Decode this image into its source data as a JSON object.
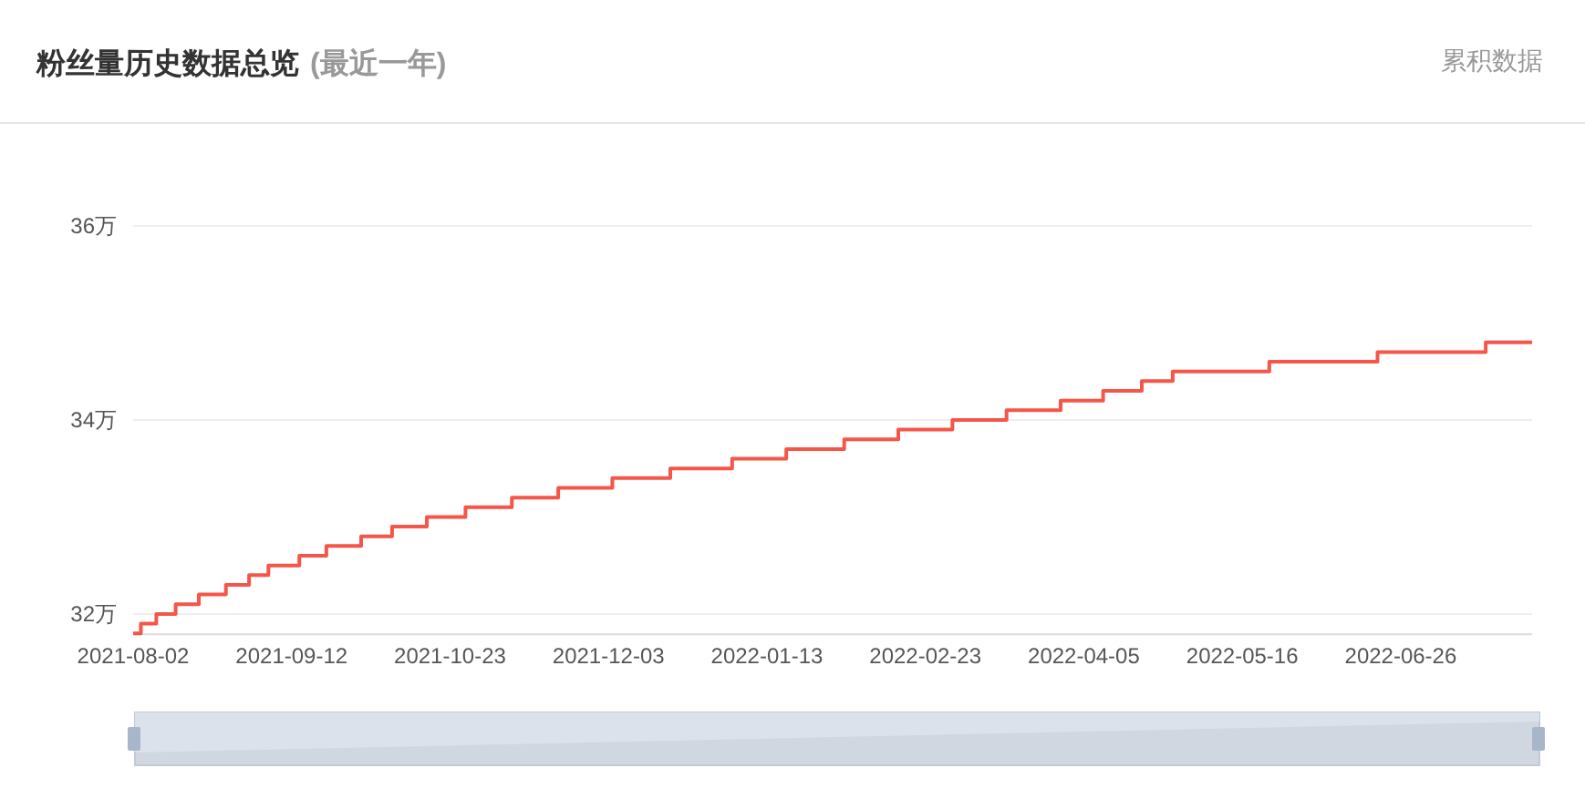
{
  "chart_data": {
    "type": "step",
    "title": "粉丝量历史数据总览",
    "subtitle": "(最近一年)",
    "annotations": [
      "累积数据"
    ],
    "x": [
      "2021-08-02",
      "2021-08-04",
      "2021-08-08",
      "2021-08-13",
      "2021-08-19",
      "2021-08-26",
      "2021-09-01",
      "2021-09-06",
      "2021-09-14",
      "2021-09-21",
      "2021-09-30",
      "2021-10-08",
      "2021-10-17",
      "2021-10-27",
      "2021-11-08",
      "2021-11-20",
      "2021-12-04",
      "2021-12-19",
      "2022-01-04",
      "2022-01-18",
      "2022-02-02",
      "2022-02-16",
      "2022-03-02",
      "2022-03-16",
      "2022-03-30",
      "2022-04-10",
      "2022-04-20",
      "2022-04-28",
      "2022-05-23",
      "2022-06-20",
      "2022-07-18",
      "2022-07-30"
    ],
    "values": [
      31.8,
      31.9,
      32.0,
      32.1,
      32.2,
      32.3,
      32.4,
      32.5,
      32.6,
      32.7,
      32.8,
      32.9,
      33.0,
      33.1,
      33.2,
      33.3,
      33.4,
      33.5,
      33.6,
      33.7,
      33.8,
      33.9,
      34.0,
      34.1,
      34.2,
      34.3,
      34.4,
      34.5,
      34.6,
      34.7,
      34.8,
      34.8
    ],
    "color": "#f4564a",
    "xlim": [
      "2021-08-02",
      "2022-07-30"
    ],
    "ylim": [
      31.8,
      36
    ],
    "xticks": [
      "2021-08-02",
      "2021-09-12",
      "2021-10-23",
      "2021-12-03",
      "2022-01-13",
      "2022-02-23",
      "2022-04-05",
      "2022-05-16",
      "2022-06-26"
    ],
    "yticks": [
      {
        "value": 32,
        "label": "32万"
      },
      {
        "value": 34,
        "label": "34万"
      },
      {
        "value": 36,
        "label": "36万"
      }
    ],
    "grid": "y"
  }
}
